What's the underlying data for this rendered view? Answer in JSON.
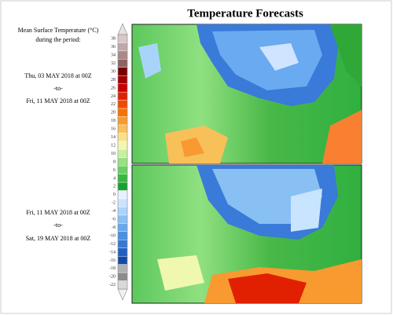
{
  "header": {
    "title": "Temperature Forecasts"
  },
  "legend": {
    "title_lines": [
      "Mean Surface Temperature (°C)",
      "during the period:"
    ],
    "ticks": [
      38,
      36,
      34,
      32,
      30,
      28,
      26,
      24,
      22,
      20,
      18,
      16,
      14,
      12,
      10,
      8,
      6,
      4,
      2,
      0,
      -2,
      -4,
      -6,
      -8,
      -10,
      -12,
      -14,
      -16,
      -18,
      -20,
      -22
    ],
    "colors": [
      "#d8c8c8",
      "#c0a8a8",
      "#a88888",
      "#8c6464",
      "#7a0000",
      "#a00000",
      "#c80000",
      "#e02000",
      "#f04a00",
      "#f87000",
      "#f89a30",
      "#f8c058",
      "#f8e088",
      "#f0f8b0",
      "#c8f0a0",
      "#98e080",
      "#68d060",
      "#38b840",
      "#18a030",
      "#e8f0ff",
      "#c8e4ff",
      "#a8d4fa",
      "#88c0f4",
      "#68a8ec",
      "#4890e0",
      "#3478d4",
      "#2260c0",
      "#1448a8",
      "#b0b0b0",
      "#8c8c8c",
      "#d8d8d8"
    ],
    "over_color": "#e8e0e0",
    "under_color": "#f0f0f0"
  },
  "periods": [
    {
      "start": "Thu, 03 MAY 2018 at 00Z",
      "separator": "-to-",
      "end": "Fri, 11 MAY 2018 at 00Z"
    },
    {
      "start": "Fri, 11 MAY 2018 at 00Z",
      "separator": "-to-",
      "end": "Sat, 19 MAY 2018 at 00Z"
    }
  ]
}
